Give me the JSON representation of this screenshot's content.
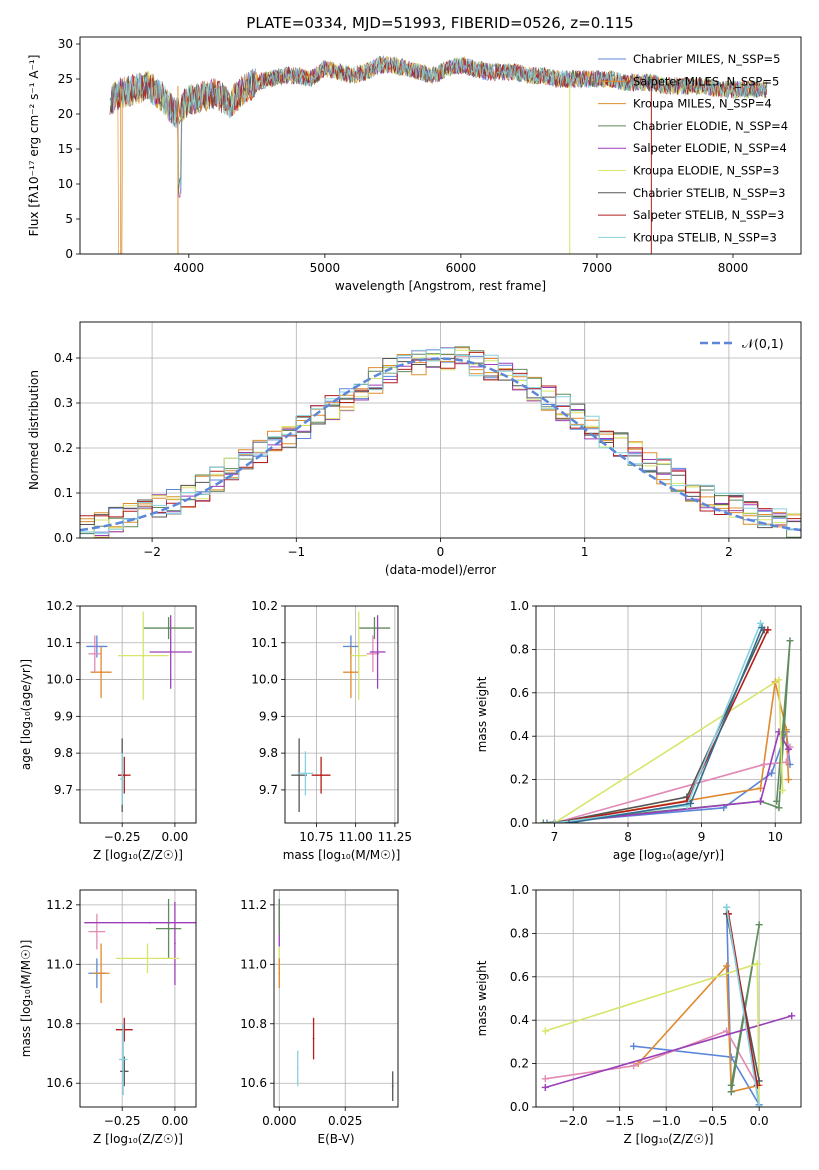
{
  "title": "PLATE=0334, MJD=51993, FIBERID=0526, z=0.115",
  "colors": [
    "#5b86d9",
    "#e08a2e",
    "#d9912f",
    "#5f8b5f",
    "#9b3fb8",
    "#d8e56a",
    "#555555",
    "#b51d1d",
    "#86d2de",
    "#e18ab5",
    "#2f6f8f",
    "#4d9a4d"
  ],
  "chart_data": [
    {
      "id": "spectrum",
      "type": "line",
      "title": "PLATE=0334, MJD=51993, FIBERID=0526, z=0.115",
      "xlabel": "wavelength [Angstrom, rest frame]",
      "ylabel": "Flux [fλ10⁻¹⁷ erg cm⁻² s⁻¹ A⁻¹]",
      "xlim": [
        3200,
        8500
      ],
      "ylim": [
        0,
        31
      ],
      "xticks": [
        4000,
        5000,
        6000,
        7000,
        8000
      ],
      "yticks": [
        0,
        5,
        10,
        15,
        20,
        25,
        30
      ],
      "grid": false,
      "legend_position": "right",
      "x": [
        3420,
        3500,
        3600,
        3700,
        3800,
        3900,
        4000,
        4100,
        4200,
        4300,
        4400,
        4500,
        4600,
        4700,
        4800,
        4900,
        5000,
        5100,
        5200,
        5300,
        5400,
        5500,
        5600,
        5700,
        5800,
        5900,
        6000,
        6100,
        6200,
        6300,
        6400,
        6500,
        6600,
        6700,
        6800,
        6900,
        7000,
        7100,
        7200,
        7300,
        7400,
        7500,
        7600,
        7700,
        7800,
        7900,
        8000,
        8100,
        8200
      ],
      "y": [
        22,
        23,
        23.5,
        24,
        22.5,
        20,
        22,
        22.5,
        23,
        21.5,
        23.5,
        24.5,
        25,
        25.5,
        25.5,
        25,
        26.5,
        26,
        25.5,
        26,
        27,
        27,
        26.5,
        26,
        25.5,
        26.5,
        27,
        26.5,
        26,
        26,
        26,
        25.5,
        25.5,
        25,
        25,
        25,
        25,
        25,
        24.5,
        24.5,
        24.5,
        24,
        24,
        24,
        24,
        23.5,
        23.5,
        23.5,
        23.5
      ],
      "series": [
        {
          "name": "Chabrier MILES, N_SSP=5",
          "color": "#5b86d9"
        },
        {
          "name": "Salpeter MILES, N_SSP=5",
          "color": "#e08a2e"
        },
        {
          "name": "Kroupa MILES, N_SSP=4",
          "color": "#d9912f"
        },
        {
          "name": "Chabrier ELODIE, N_SSP=4",
          "color": "#5f8b5f"
        },
        {
          "name": "Salpeter ELODIE, N_SSP=4",
          "color": "#9b3fb8"
        },
        {
          "name": "Kroupa ELODIE, N_SSP=3",
          "color": "#d8e56a"
        },
        {
          "name": "Chabrier STELIB, N_SSP=3",
          "color": "#555555"
        },
        {
          "name": "Salpeter STELIB, N_SSP=3",
          "color": "#b51d1d"
        },
        {
          "name": "Kroupa STELIB, N_SSP=3",
          "color": "#86d2de"
        }
      ]
    },
    {
      "id": "histogram",
      "type": "bar",
      "xlabel": "(data-model)/error",
      "ylabel": "Normed distribution",
      "xlim": [
        -2.5,
        2.5
      ],
      "ylim": [
        0,
        0.48
      ],
      "xticks": [
        -2,
        -1,
        0,
        1,
        2
      ],
      "yticks": [
        0.0,
        0.1,
        0.2,
        0.3,
        0.4
      ],
      "grid": true,
      "legend_position": "top-right",
      "reference_curve": {
        "name": "𝒩(0,1)",
        "color": "#5b86d9"
      },
      "bin_width": 0.1,
      "bin_start": -2.5,
      "series_values": [
        0.02,
        0.03,
        0.04,
        0.05,
        0.06,
        0.07,
        0.08,
        0.09,
        0.11,
        0.13,
        0.15,
        0.17,
        0.19,
        0.21,
        0.23,
        0.25,
        0.27,
        0.29,
        0.31,
        0.33,
        0.35,
        0.37,
        0.38,
        0.39,
        0.4,
        0.4,
        0.4,
        0.39,
        0.38,
        0.37,
        0.35,
        0.33,
        0.31,
        0.29,
        0.27,
        0.25,
        0.23,
        0.21,
        0.19,
        0.17,
        0.15,
        0.13,
        0.11,
        0.09,
        0.08,
        0.07,
        0.06,
        0.05,
        0.04,
        0.03
      ]
    },
    {
      "id": "age-vs-Z",
      "type": "scatter",
      "xlabel": "Z [log₁₀(Z/Z☉)]",
      "ylabel": "age  [log₁₀(age/yr)]",
      "xlim": [
        -0.45,
        0.1
      ],
      "ylim": [
        9.61,
        10.2
      ],
      "xticks": [
        -0.25,
        0.0
      ],
      "yticks": [
        9.7,
        9.8,
        9.9,
        10.0,
        10.1,
        10.2
      ],
      "grid": true,
      "points": [
        {
          "x": -0.37,
          "y": 10.09,
          "xerr": 0.05,
          "yerr": 0.03,
          "color": "#5b86d9"
        },
        {
          "x": -0.35,
          "y": 10.02,
          "xerr": 0.05,
          "yerr": 0.07,
          "color": "#e08a2e"
        },
        {
          "x": -0.38,
          "y": 10.07,
          "xerr": 0.03,
          "yerr": 0.05,
          "color": "#e18ab5"
        },
        {
          "x": -0.03,
          "y": 10.14,
          "xerr": 0.12,
          "yerr": 0.03,
          "color": "#5f8b5f"
        },
        {
          "x": -0.02,
          "y": 10.075,
          "xerr": 0.1,
          "yerr": 0.1,
          "color": "#9b3fb8"
        },
        {
          "x": -0.15,
          "y": 10.065,
          "xerr": 0.12,
          "yerr": 0.12,
          "color": "#d8e56a"
        },
        {
          "x": -0.25,
          "y": 9.74,
          "xerr": 0.02,
          "yerr": 0.1,
          "color": "#555555"
        },
        {
          "x": -0.24,
          "y": 9.74,
          "xerr": 0.03,
          "yerr": 0.05,
          "color": "#b51d1d"
        },
        {
          "x": -0.25,
          "y": 9.73,
          "xerr": 0.01,
          "yerr": 0.07,
          "color": "#86d2de"
        }
      ]
    },
    {
      "id": "age-vs-mass",
      "type": "scatter",
      "xlabel": "mass [log₁₀(M/M☉)]",
      "ylabel": "",
      "xlim": [
        10.55,
        11.27
      ],
      "ylim": [
        9.61,
        10.2
      ],
      "xticks": [
        10.75,
        11.0,
        11.25
      ],
      "yticks": [
        9.7,
        9.8,
        9.9,
        10.0,
        10.1,
        10.2
      ],
      "grid": true,
      "points": [
        {
          "x": 10.97,
          "y": 10.09,
          "xerr": 0.05,
          "yerr": 0.03,
          "color": "#5b86d9"
        },
        {
          "x": 10.97,
          "y": 10.02,
          "xerr": 0.05,
          "yerr": 0.07,
          "color": "#e08a2e"
        },
        {
          "x": 11.11,
          "y": 10.07,
          "xerr": 0.04,
          "yerr": 0.05,
          "color": "#e18ab5"
        },
        {
          "x": 11.12,
          "y": 10.14,
          "xerr": 0.1,
          "yerr": 0.03,
          "color": "#5f8b5f"
        },
        {
          "x": 11.14,
          "y": 10.075,
          "xerr": 0.05,
          "yerr": 0.1,
          "color": "#9b3fb8"
        },
        {
          "x": 11.02,
          "y": 10.065,
          "xerr": 0.05,
          "yerr": 0.12,
          "color": "#d8e56a"
        },
        {
          "x": 10.64,
          "y": 9.74,
          "xerr": 0.05,
          "yerr": 0.1,
          "color": "#555555"
        },
        {
          "x": 10.78,
          "y": 9.74,
          "xerr": 0.06,
          "yerr": 0.05,
          "color": "#b51d1d"
        },
        {
          "x": 10.68,
          "y": 9.745,
          "xerr": 0.05,
          "yerr": 0.06,
          "color": "#86d2de"
        }
      ]
    },
    {
      "id": "massweight-vs-age",
      "type": "line",
      "xlabel": "age  [log₁₀(age/yr)]",
      "ylabel": "mass weight",
      "xlim": [
        6.75,
        10.35
      ],
      "ylim": [
        0.0,
        1.0
      ],
      "xticks": [
        7,
        8,
        9,
        10
      ],
      "yticks": [
        0.0,
        0.2,
        0.4,
        0.6,
        0.8,
        1.0
      ],
      "grid": true,
      "series": [
        {
          "color": "#5b86d9",
          "x": [
            6.9,
            9.3,
            9.95,
            10.15,
            10.2
          ],
          "y": [
            0.0,
            0.07,
            0.23,
            0.42,
            0.27
          ]
        },
        {
          "color": "#e08a2e",
          "x": [
            7.0,
            9.8,
            10.0,
            10.15,
            10.18
          ],
          "y": [
            0.0,
            0.16,
            0.65,
            0.43,
            0.2
          ]
        },
        {
          "color": "#e18ab5",
          "x": [
            7.0,
            9.85,
            10.15,
            10.2
          ],
          "y": [
            0.0,
            0.27,
            0.28,
            0.35
          ]
        },
        {
          "color": "#5f8b5f",
          "x": [
            6.85,
            9.8,
            10.05,
            10.2,
            10.02
          ],
          "y": [
            0.0,
            0.1,
            0.07,
            0.84,
            0.1
          ]
        },
        {
          "color": "#9b3fb8",
          "x": [
            7.0,
            9.8,
            10.05,
            10.18
          ],
          "y": [
            0.0,
            0.1,
            0.42,
            0.34
          ]
        },
        {
          "color": "#d8e56a",
          "x": [
            7.0,
            10.05,
            10.1
          ],
          "y": [
            0.0,
            0.66,
            0.15
          ]
        },
        {
          "color": "#555555",
          "x": [
            7.0,
            8.8,
            9.85
          ],
          "y": [
            0.0,
            0.12,
            0.89
          ]
        },
        {
          "color": "#b51d1d",
          "x": [
            7.0,
            8.8,
            9.9
          ],
          "y": [
            0.0,
            0.1,
            0.89
          ]
        },
        {
          "color": "#86d2de",
          "x": [
            7.0,
            8.8,
            9.8
          ],
          "y": [
            0.0,
            0.08,
            0.92
          ]
        },
        {
          "color": "#2f6f8f",
          "x": [
            7.2,
            8.85,
            9.82
          ],
          "y": [
            0.0,
            0.09,
            0.9
          ]
        }
      ]
    },
    {
      "id": "mass-vs-Z",
      "type": "scatter",
      "xlabel": "Z [log₁₀(Z/Z☉)]",
      "ylabel": "mass [log₁₀(M/M☉)]",
      "xlim": [
        -0.45,
        0.1
      ],
      "ylim": [
        10.52,
        11.25
      ],
      "xticks": [
        -0.25,
        0.0
      ],
      "yticks": [
        10.6,
        10.8,
        11.0,
        11.2
      ],
      "grid": true,
      "points": [
        {
          "x": -0.37,
          "y": 10.97,
          "xerr": 0.04,
          "yerr": 0.05,
          "color": "#5b86d9"
        },
        {
          "x": -0.35,
          "y": 10.97,
          "xerr": 0.04,
          "yerr": 0.1,
          "color": "#e08a2e"
        },
        {
          "x": -0.37,
          "y": 11.11,
          "xerr": 0.04,
          "yerr": 0.06,
          "color": "#e18ab5"
        },
        {
          "x": -0.03,
          "y": 11.12,
          "xerr": 0.06,
          "yerr": 0.1,
          "color": "#5f8b5f"
        },
        {
          "x": -0.12,
          "y": 11.14,
          "xerr": 0.31,
          "yerr": 0.0,
          "color": "#9b3fb8"
        },
        {
          "x": 0.0,
          "y": 11.07,
          "xerr": 0.0,
          "yerr": 0.14,
          "color": "#9b3fb8"
        },
        {
          "x": -0.13,
          "y": 11.02,
          "xerr": 0.15,
          "yerr": 0.05,
          "color": "#d8e56a"
        },
        {
          "x": -0.24,
          "y": 10.64,
          "xerr": 0.02,
          "yerr": 0.05,
          "color": "#555555"
        },
        {
          "x": -0.24,
          "y": 10.78,
          "xerr": 0.04,
          "yerr": 0.04,
          "color": "#b51d1d"
        },
        {
          "x": -0.245,
          "y": 10.68,
          "xerr": 0.02,
          "yerr": 0.12,
          "color": "#86d2de"
        }
      ]
    },
    {
      "id": "mass-vs-EBV",
      "type": "scatter",
      "xlabel": "E(B-V)",
      "ylabel": "",
      "xlim": [
        -0.002,
        0.045
      ],
      "ylim": [
        10.52,
        11.25
      ],
      "xticks": [
        0.0,
        0.025
      ],
      "yticks": [
        10.6,
        10.8,
        11.0,
        11.2
      ],
      "grid": true,
      "points": [
        {
          "x": 0.0,
          "y": 11.14,
          "xerr": 0.0,
          "yerr": 0.08,
          "color": "#9b3fb8"
        },
        {
          "x": 0.0,
          "y": 11.0,
          "xerr": 0.0,
          "yerr": 0.06,
          "color": "#d8e56a"
        },
        {
          "x": 0.0,
          "y": 11.16,
          "xerr": 0.0,
          "yerr": 0.06,
          "color": "#5f8b5f"
        },
        {
          "x": 0.0,
          "y": 10.97,
          "xerr": 0.0,
          "yerr": 0.05,
          "color": "#e08a2e"
        },
        {
          "x": 0.013,
          "y": 10.75,
          "xerr": 0.0,
          "yerr": 0.07,
          "color": "#b51d1d"
        },
        {
          "x": 0.007,
          "y": 10.65,
          "xerr": 0.0,
          "yerr": 0.06,
          "color": "#86d2de"
        },
        {
          "x": 0.043,
          "y": 10.59,
          "xerr": 0.0,
          "yerr": 0.05,
          "color": "#555555"
        }
      ]
    },
    {
      "id": "massweight-vs-Z",
      "type": "line",
      "xlabel": "Z [log₁₀(Z/Z☉)]",
      "ylabel": "mass weight",
      "xlim": [
        -2.4,
        0.45
      ],
      "ylim": [
        0.0,
        1.0
      ],
      "xticks": [
        -2.0,
        -1.5,
        -1.0,
        -0.5,
        0.0
      ],
      "yticks": [
        0.0,
        0.2,
        0.4,
        0.6,
        0.8,
        1.0
      ],
      "grid": true,
      "series": [
        {
          "color": "#5b86d9",
          "x": [
            -1.35,
            -0.3,
            0.0,
            -0.35,
            -0.3
          ],
          "y": [
            0.28,
            0.23,
            0.01,
            0.92,
            0.07
          ]
        },
        {
          "color": "#e08a2e",
          "x": [
            -1.3,
            -0.35,
            -0.3,
            0.0
          ],
          "y": [
            0.2,
            0.65,
            0.07,
            0.1
          ]
        },
        {
          "color": "#e18ab5",
          "x": [
            -2.3,
            -1.35,
            -0.35,
            -0.02
          ],
          "y": [
            0.13,
            0.19,
            0.35,
            0.1
          ]
        },
        {
          "color": "#5f8b5f",
          "x": [
            -0.3,
            0.0,
            -0.3
          ],
          "y": [
            0.07,
            0.84,
            0.1
          ]
        },
        {
          "color": "#9b3fb8",
          "x": [
            -2.3,
            0.35
          ],
          "y": [
            0.09,
            0.42
          ]
        },
        {
          "color": "#d8e56a",
          "x": [
            -2.3,
            -0.02,
            0.0
          ],
          "y": [
            0.35,
            0.66,
            0.0
          ]
        },
        {
          "color": "#555555",
          "x": [
            -0.35,
            0.0
          ],
          "y": [
            0.89,
            0.12
          ]
        },
        {
          "color": "#b51d1d",
          "x": [
            -0.33,
            -0.02
          ],
          "y": [
            0.89,
            0.1
          ]
        },
        {
          "color": "#86d2de",
          "x": [
            -0.35,
            0.0
          ],
          "y": [
            0.92,
            0.0
          ]
        }
      ]
    }
  ]
}
